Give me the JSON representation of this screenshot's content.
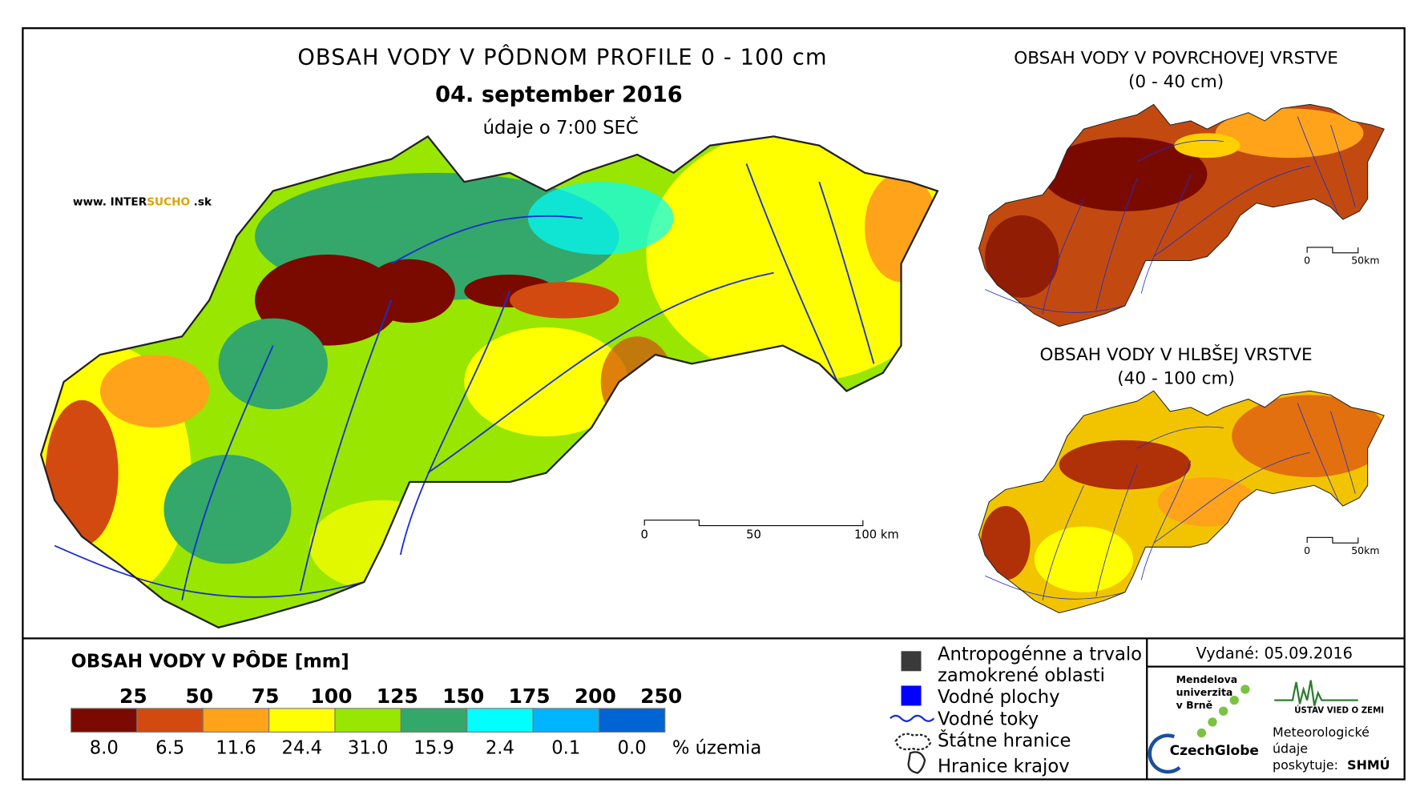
{
  "main_map": {
    "title": "OBSAH VODY V PÔDNOM PROFILE 0 - 100 cm",
    "date": "04. september 2016",
    "time_note": "údaje o 7:00 SEČ",
    "website": {
      "prefix": "www. INTER",
      "brand": "SUCHO",
      "suffix": ".sk"
    },
    "scale_bar": [
      "0",
      "50",
      "100 km"
    ]
  },
  "surface_inset": {
    "title_lines": [
      "OBSAH VODY V POVRCHOVEJ VRSTVE",
      "(0 - 40 cm)"
    ],
    "scale_bar": [
      "0",
      "50km"
    ]
  },
  "deep_inset": {
    "title_lines": [
      "OBSAH VODY V HLBŠEJ VRSTVE",
      "(40 - 100 cm)"
    ],
    "scale_bar": [
      "0",
      "50km"
    ]
  },
  "legend": {
    "title": "OBSAH VODY V PÔDE [mm]",
    "thresholds": [
      "25",
      "50",
      "75",
      "100",
      "125",
      "150",
      "175",
      "200",
      "250"
    ],
    "classes": [
      {
        "color": "#7a0a00",
        "share": "8.0"
      },
      {
        "color": "#d24a10",
        "share": "6.5"
      },
      {
        "color": "#ffa31a",
        "share": "11.6"
      },
      {
        "color": "#ffff00",
        "share": "24.4"
      },
      {
        "color": "#99e600",
        "share": "31.0"
      },
      {
        "color": "#33a86a",
        "share": "15.9"
      },
      {
        "color": "#00ffff",
        "share": "2.4"
      },
      {
        "color": "#00b4ff",
        "share": "0.1"
      },
      {
        "color": "#0064d2",
        "share": "0.0"
      }
    ],
    "share_unit": "% územia"
  },
  "symbols": {
    "anthropogenic": [
      "Antropogénne a trvalo",
      "zamokrené oblasti"
    ],
    "water_bodies": "Vodné plochy",
    "rivers": "Vodné toky",
    "state_border": "Štátne hranice",
    "region_border": "Hranice krajov"
  },
  "footer": {
    "issued": "Vydané: 05.09.2016",
    "mendel": [
      "Mendelova",
      "univerzita",
      "v Brně"
    ],
    "czechglobe": "CzechGlobe",
    "earth_institute": "ÚSTAV VIED O ZEMI",
    "meteo": [
      "Meteorologické",
      "údaje",
      "poskytuje:"
    ],
    "shmu": "SHMÚ"
  }
}
